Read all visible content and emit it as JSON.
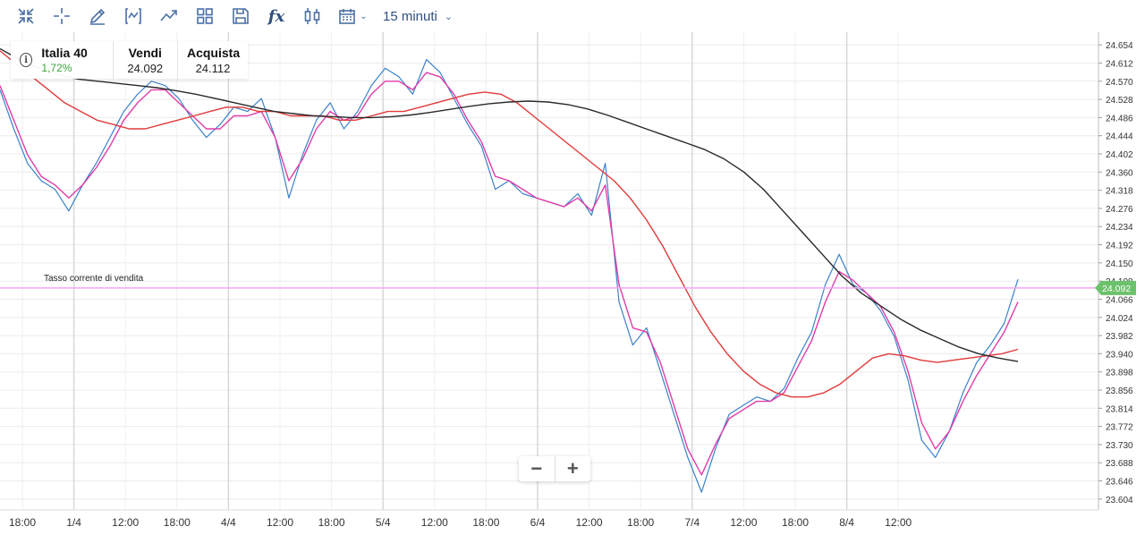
{
  "toolbar": {
    "tools": [
      {
        "icon": "compress-icon"
      },
      {
        "icon": "crosshair-icon"
      },
      {
        "icon": "pencil-icon"
      },
      {
        "icon": "indicator-icon"
      },
      {
        "icon": "trend-icon"
      },
      {
        "icon": "layout-grid-icon"
      },
      {
        "icon": "save-icon"
      },
      {
        "icon": "function-icon",
        "glyph": "fx"
      },
      {
        "icon": "candlestick-icon"
      },
      {
        "icon": "calendar-icon"
      }
    ],
    "timeframe": "15 minuti"
  },
  "instrument": {
    "name": "Italia 40",
    "change": "1,72%",
    "sell_label": "Vendi",
    "sell_price": "24.092",
    "buy_label": "Acquista",
    "buy_price": "24.112"
  },
  "current_rate": {
    "label": "Tasso corrente di vendita",
    "value": 24092,
    "value_label": "24.092"
  },
  "zoom": {
    "minus": "−",
    "plus": "+"
  },
  "colors": {
    "price": "#3b82c9",
    "ma_fast": "#e03ca8",
    "ma_mid": "#e23a3a",
    "ma_slow": "#2a2a2a",
    "current_line": "#f2a6f2",
    "current_badge": "#6cc26c",
    "change_positive": "#3aa53a"
  },
  "chart_data": {
    "type": "line",
    "ylim": [
      23583,
      24675
    ],
    "y_ticks": [
      "24.654",
      "24.612",
      "24.570",
      "24.528",
      "24.486",
      "24.444",
      "24.402",
      "24.360",
      "24.318",
      "24.276",
      "24.234",
      "24.192",
      "24.150",
      "24.108",
      "24.066",
      "24.024",
      "23.982",
      "23.940",
      "23.898",
      "23.856",
      "23.814",
      "23.772",
      "23.730",
      "23.688",
      "23.646",
      "23.604"
    ],
    "x_ticks": [
      "18:00",
      "1/4",
      "12:00",
      "18:00",
      "4/4",
      "12:00",
      "18:00",
      "5/4",
      "12:00",
      "18:00",
      "6/4",
      "12:00",
      "18:00",
      "7/4",
      "12:00",
      "18:00",
      "8/4",
      "12:00"
    ],
    "x_tick_index": [
      0,
      1,
      2,
      3,
      4,
      5,
      6,
      7,
      8,
      9,
      10,
      11,
      12,
      13,
      14,
      15,
      16,
      17
    ],
    "grid": true,
    "series": [
      {
        "key": "price",
        "values": [
          24550,
          24460,
          24380,
          24340,
          24320,
          24270,
          24330,
          24380,
          24440,
          24500,
          24540,
          24570,
          24560,
          24530,
          24480,
          24440,
          24470,
          24510,
          24500,
          24530,
          24440,
          24300,
          24400,
          24480,
          24520,
          24460,
          24500,
          24560,
          24600,
          24580,
          24540,
          24620,
          24590,
          24530,
          24470,
          24420,
          24320,
          24340,
          24310,
          24300,
          24290,
          24280,
          24310,
          24260,
          24380,
          24060,
          23960,
          24000,
          23900,
          23800,
          23700,
          23620,
          23720,
          23800,
          23820,
          23840,
          23830,
          23860,
          23930,
          23990,
          24100,
          24170,
          24100,
          24080,
          24040,
          23980,
          23880,
          23740,
          23700,
          23760,
          23850,
          23920,
          23960,
          24010,
          24112
        ]
      },
      {
        "key": "ma_fast",
        "values": [
          24560,
          24480,
          24400,
          24350,
          24330,
          24300,
          24330,
          24370,
          24420,
          24480,
          24520,
          24550,
          24550,
          24520,
          24490,
          24460,
          24460,
          24490,
          24490,
          24500,
          24440,
          24340,
          24390,
          24460,
          24500,
          24480,
          24490,
          24540,
          24570,
          24570,
          24550,
          24590,
          24580,
          24540,
          24480,
          24430,
          24350,
          24340,
          24320,
          24300,
          24290,
          24280,
          24300,
          24270,
          24330,
          24100,
          24000,
          23990,
          23920,
          23820,
          23720,
          23660,
          23730,
          23790,
          23810,
          23830,
          23830,
          23850,
          23910,
          23970,
          24060,
          24130,
          24110,
          24080,
          24050,
          23990,
          23900,
          23780,
          23720,
          23760,
          23830,
          23890,
          23940,
          23990,
          24060
        ]
      },
      {
        "key": "ma_mid",
        "values": [
          24640,
          24610,
          24580,
          24550,
          24520,
          24500,
          24480,
          24470,
          24460,
          24460,
          24470,
          24480,
          24490,
          24500,
          24510,
          24510,
          24500,
          24500,
          24490,
          24490,
          24490,
          24480,
          24480,
          24490,
          24500,
          24500,
          24510,
          24520,
          24530,
          24540,
          24545,
          24540,
          24520,
          24490,
          24460,
          24430,
          24400,
          24370,
          24340,
          24300,
          24250,
          24190,
          24120,
          24050,
          23990,
          23940,
          23900,
          23870,
          23850,
          23840,
          23840,
          23850,
          23870,
          23900,
          23930,
          23940,
          23935,
          23925,
          23920,
          23925,
          23930,
          23935,
          23940,
          23950
        ]
      },
      {
        "key": "ma_slow",
        "values": [
          24645,
          24620,
          24600,
          24585,
          24575,
          24570,
          24565,
          24560,
          24555,
          24548,
          24540,
          24530,
          24520,
          24510,
          24500,
          24495,
          24490,
          24488,
          24486,
          24486,
          24488,
          24492,
          24498,
          24505,
          24512,
          24518,
          24522,
          24524,
          24522,
          24516,
          24506,
          24492,
          24476,
          24460,
          24444,
          24428,
          24412,
          24390,
          24360,
          24320,
          24270,
          24220,
          24170,
          24120,
          24080,
          24050,
          24020,
          23995,
          23975,
          23955,
          23940,
          23930,
          23922
        ]
      }
    ]
  }
}
